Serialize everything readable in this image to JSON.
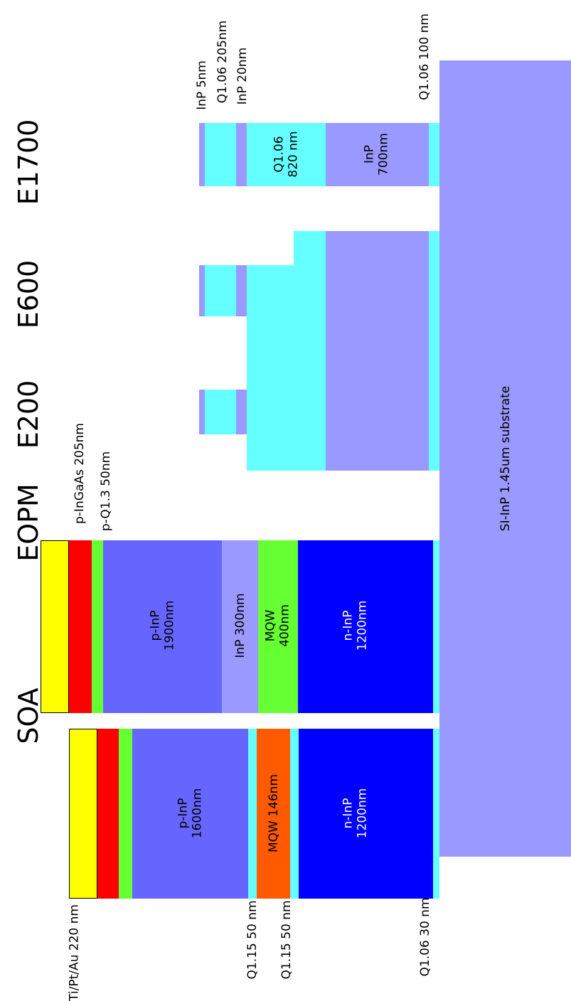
{
  "colors": {
    "contact": "#ffff00",
    "p_ingaas": "#ff0000",
    "q13": "#66ff33",
    "p_inp": "#6666ff",
    "q115": "#66ffff",
    "mqw_soa": "#ff5a00",
    "n_inp": "#0000ff",
    "substrate": "#9999ff",
    "inp_light": "#9999ff",
    "q106": "#66ffff",
    "mqw_eopm": "#66ff33"
  },
  "columns": {
    "soa": "SOA",
    "eopm": "EOPM",
    "e200": "E200",
    "e600": "E600",
    "e1700": "E1700"
  },
  "layers": {
    "soa_p_inp": [
      "p-InP",
      "1600nm"
    ],
    "soa_mqw": "MQW 146nm",
    "soa_n_inp": [
      "n-InP",
      "1200nm"
    ],
    "eopm_p_inp": [
      "p-InP",
      "1900nm"
    ],
    "eopm_inp": "InP 300nm",
    "eopm_mqw": [
      "MQW",
      "400nm"
    ],
    "eopm_n_inp": [
      "n-InP",
      "1200nm"
    ],
    "e1700_q106": [
      "Q1.06",
      "820 nm"
    ],
    "e1700_inp": [
      "InP",
      "700nm"
    ],
    "substrate": "SI-InP 1.45um substrate"
  },
  "callouts": {
    "contact": "Ti/Pt/Au 220 nm",
    "q115_top": "Q1.15 50 nm",
    "q115_bottom": "Q1.15 50 nm",
    "q106_bottom": "Q1.06 30 nm",
    "p_ingaas": "p-InGaAs 205nm",
    "p_q13": "p-Q1.3 50nm",
    "inp_5": "InP 5nm",
    "q106_205": "Q1.06 205nm",
    "inp_20": "InP 20nm",
    "q106_100": "Q1.06 100 nm"
  }
}
